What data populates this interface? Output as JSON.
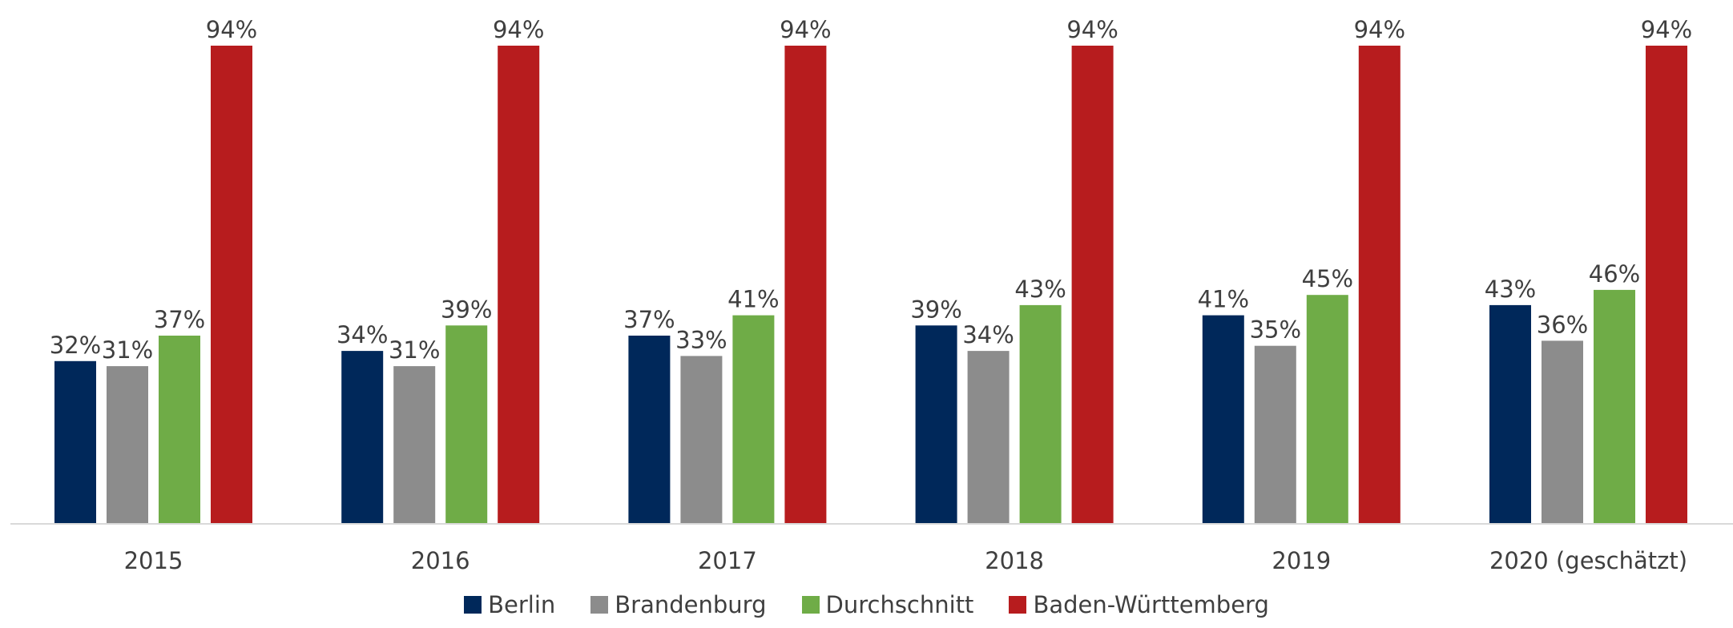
{
  "chart_data": {
    "type": "bar",
    "categories": [
      "2015",
      "2016",
      "2017",
      "2018",
      "2019",
      "2020 (geschätzt)"
    ],
    "series": [
      {
        "name": "Berlin",
        "color": "#00285a",
        "values": [
          32,
          34,
          37,
          39,
          41,
          43
        ]
      },
      {
        "name": "Brandenburg",
        "color": "#8c8c8c",
        "values": [
          31,
          31,
          33,
          34,
          35,
          36
        ]
      },
      {
        "name": "Durchschnitt",
        "color": "#6fac47",
        "values": [
          37,
          39,
          41,
          43,
          45,
          46
        ]
      },
      {
        "name": "Baden-Württemberg",
        "color": "#b71c1e",
        "values": [
          94,
          94,
          94,
          94,
          94,
          94
        ]
      }
    ],
    "value_suffix": "%",
    "ylim": [
      0,
      94
    ],
    "grid": false,
    "legend": "bottom-center",
    "title": "",
    "xlabel": "",
    "ylabel": ""
  }
}
